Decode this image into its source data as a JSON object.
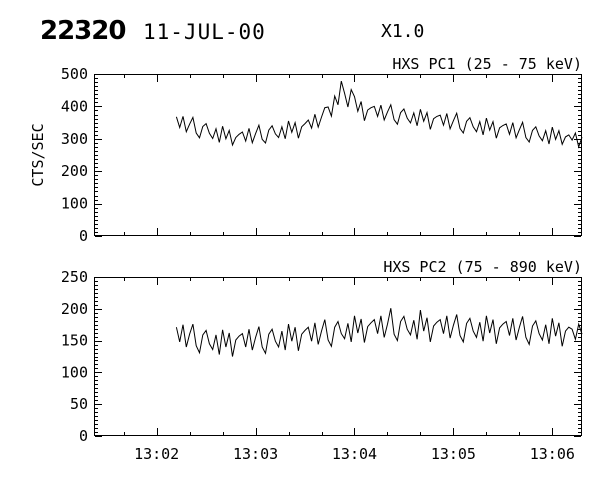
{
  "header": {
    "event_id": "22320",
    "date": "11-JUL-00",
    "goes_class": "X1.0"
  },
  "colors": {
    "background": "#ffffff",
    "foreground": "#000000"
  },
  "x_axis": {
    "time_base": "13:02",
    "tick_labels": [
      "13:02",
      "13:03",
      "13:04",
      "13:05",
      "13:06"
    ],
    "tick_seconds": [
      0,
      60,
      120,
      180,
      240
    ],
    "minor_step_s": 20,
    "range_s": [
      -38,
      258
    ]
  },
  "chart_data": [
    {
      "type": "line",
      "series_name": "HXS-PC1",
      "title": "HXS PC1 (25 - 75 keV)",
      "ylabel": "CTS/SEC",
      "ylim": [
        0,
        500
      ],
      "ytick_values": [
        0,
        100,
        200,
        300,
        400,
        500
      ],
      "grid": false,
      "x_start_s": 12,
      "x_step_s": 2,
      "values": [
        368,
        335,
        369,
        322,
        345,
        366,
        318,
        303,
        338,
        347,
        317,
        301,
        331,
        289,
        339,
        300,
        326,
        281,
        304,
        314,
        321,
        293,
        332,
        288,
        316,
        342,
        298,
        287,
        327,
        340,
        315,
        304,
        337,
        300,
        355,
        320,
        350,
        302,
        337,
        347,
        358,
        333,
        376,
        336,
        367,
        396,
        398,
        370,
        432,
        405,
        478,
        440,
        398,
        452,
        430,
        385,
        415,
        356,
        389,
        396,
        400,
        369,
        404,
        358,
        383,
        405,
        359,
        345,
        381,
        392,
        364,
        349,
        380,
        340,
        391,
        354,
        381,
        329,
        362,
        369,
        373,
        342,
        378,
        331,
        356,
        379,
        332,
        318,
        354,
        365,
        337,
        322,
        353,
        312,
        364,
        327,
        353,
        302,
        334,
        341,
        346,
        314,
        350,
        303,
        328,
        351,
        304,
        290,
        326,
        337,
        309,
        294,
        325,
        284,
        336,
        298,
        325,
        283,
        306,
        312,
        296,
        318,
        275,
        305
      ]
    },
    {
      "type": "line",
      "series_name": "HXS-PC2",
      "title": "HXS PC2 (75 - 890 keV)",
      "ylabel": "",
      "ylim": [
        0,
        250
      ],
      "ytick_values": [
        0,
        50,
        100,
        150,
        200,
        250
      ],
      "grid": false,
      "x_start_s": 12,
      "x_step_s": 2,
      "values": [
        171,
        148,
        175,
        140,
        160,
        176,
        142,
        131,
        159,
        166,
        145,
        136,
        159,
        128,
        167,
        140,
        162,
        125,
        151,
        157,
        161,
        140,
        168,
        135,
        155,
        172,
        140,
        130,
        160,
        168,
        149,
        140,
        165,
        135,
        176,
        149,
        171,
        134,
        160,
        166,
        171,
        149,
        178,
        144,
        165,
        183,
        151,
        141,
        171,
        180,
        161,
        153,
        177,
        148,
        189,
        162,
        184,
        147,
        172,
        178,
        183,
        161,
        189,
        155,
        176,
        201,
        160,
        150,
        180,
        188,
        168,
        159,
        182,
        152,
        198,
        165,
        186,
        148,
        173,
        179,
        183,
        161,
        189,
        154,
        174,
        191,
        158,
        148,
        177,
        185,
        165,
        155,
        179,
        149,
        189,
        162,
        183,
        145,
        170,
        176,
        180,
        158,
        185,
        151,
        171,
        188,
        155,
        144,
        173,
        181,
        161,
        151,
        175,
        145,
        185,
        157,
        178,
        141,
        165,
        171,
        168,
        152,
        176,
        160
      ]
    }
  ]
}
